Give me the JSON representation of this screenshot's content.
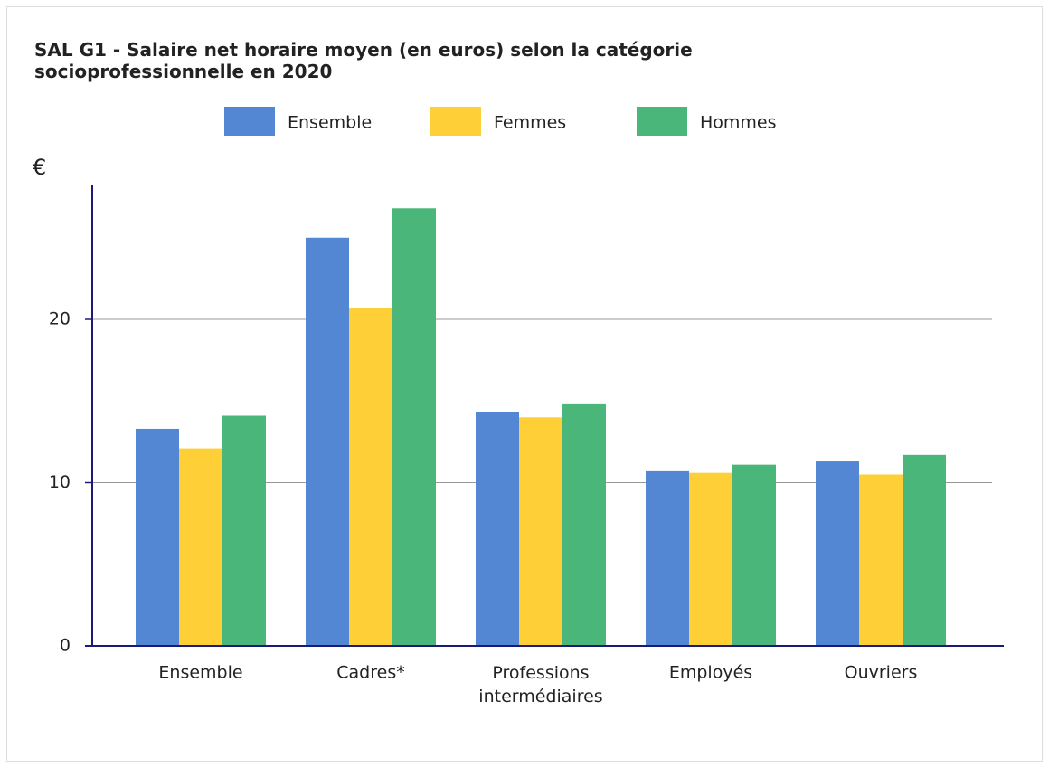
{
  "chart_data": {
    "type": "bar",
    "title": "SAL G1 - Salaire net horaire moyen (en euros) selon la catégorie socioprofessionnelle en 2020",
    "y_label": "€",
    "categories": [
      "Ensemble",
      "Cadres*",
      "Professions intermédiaires",
      "Employés",
      "Ouvriers"
    ],
    "series": [
      {
        "name": "Ensemble",
        "color": "#5387d3",
        "values": [
          13.3,
          25.0,
          14.3,
          10.7,
          11.3
        ]
      },
      {
        "name": "Femmes",
        "color": "#fecf37",
        "values": [
          12.1,
          20.7,
          14.0,
          10.6,
          10.5
        ]
      },
      {
        "name": "Hommes",
        "color": "#4ab679",
        "values": [
          14.1,
          26.8,
          14.8,
          11.1,
          11.7
        ]
      }
    ],
    "ylim": [
      0,
      28.2
    ],
    "yticks": [
      0,
      10,
      20
    ],
    "grid": true,
    "legend": "top"
  }
}
